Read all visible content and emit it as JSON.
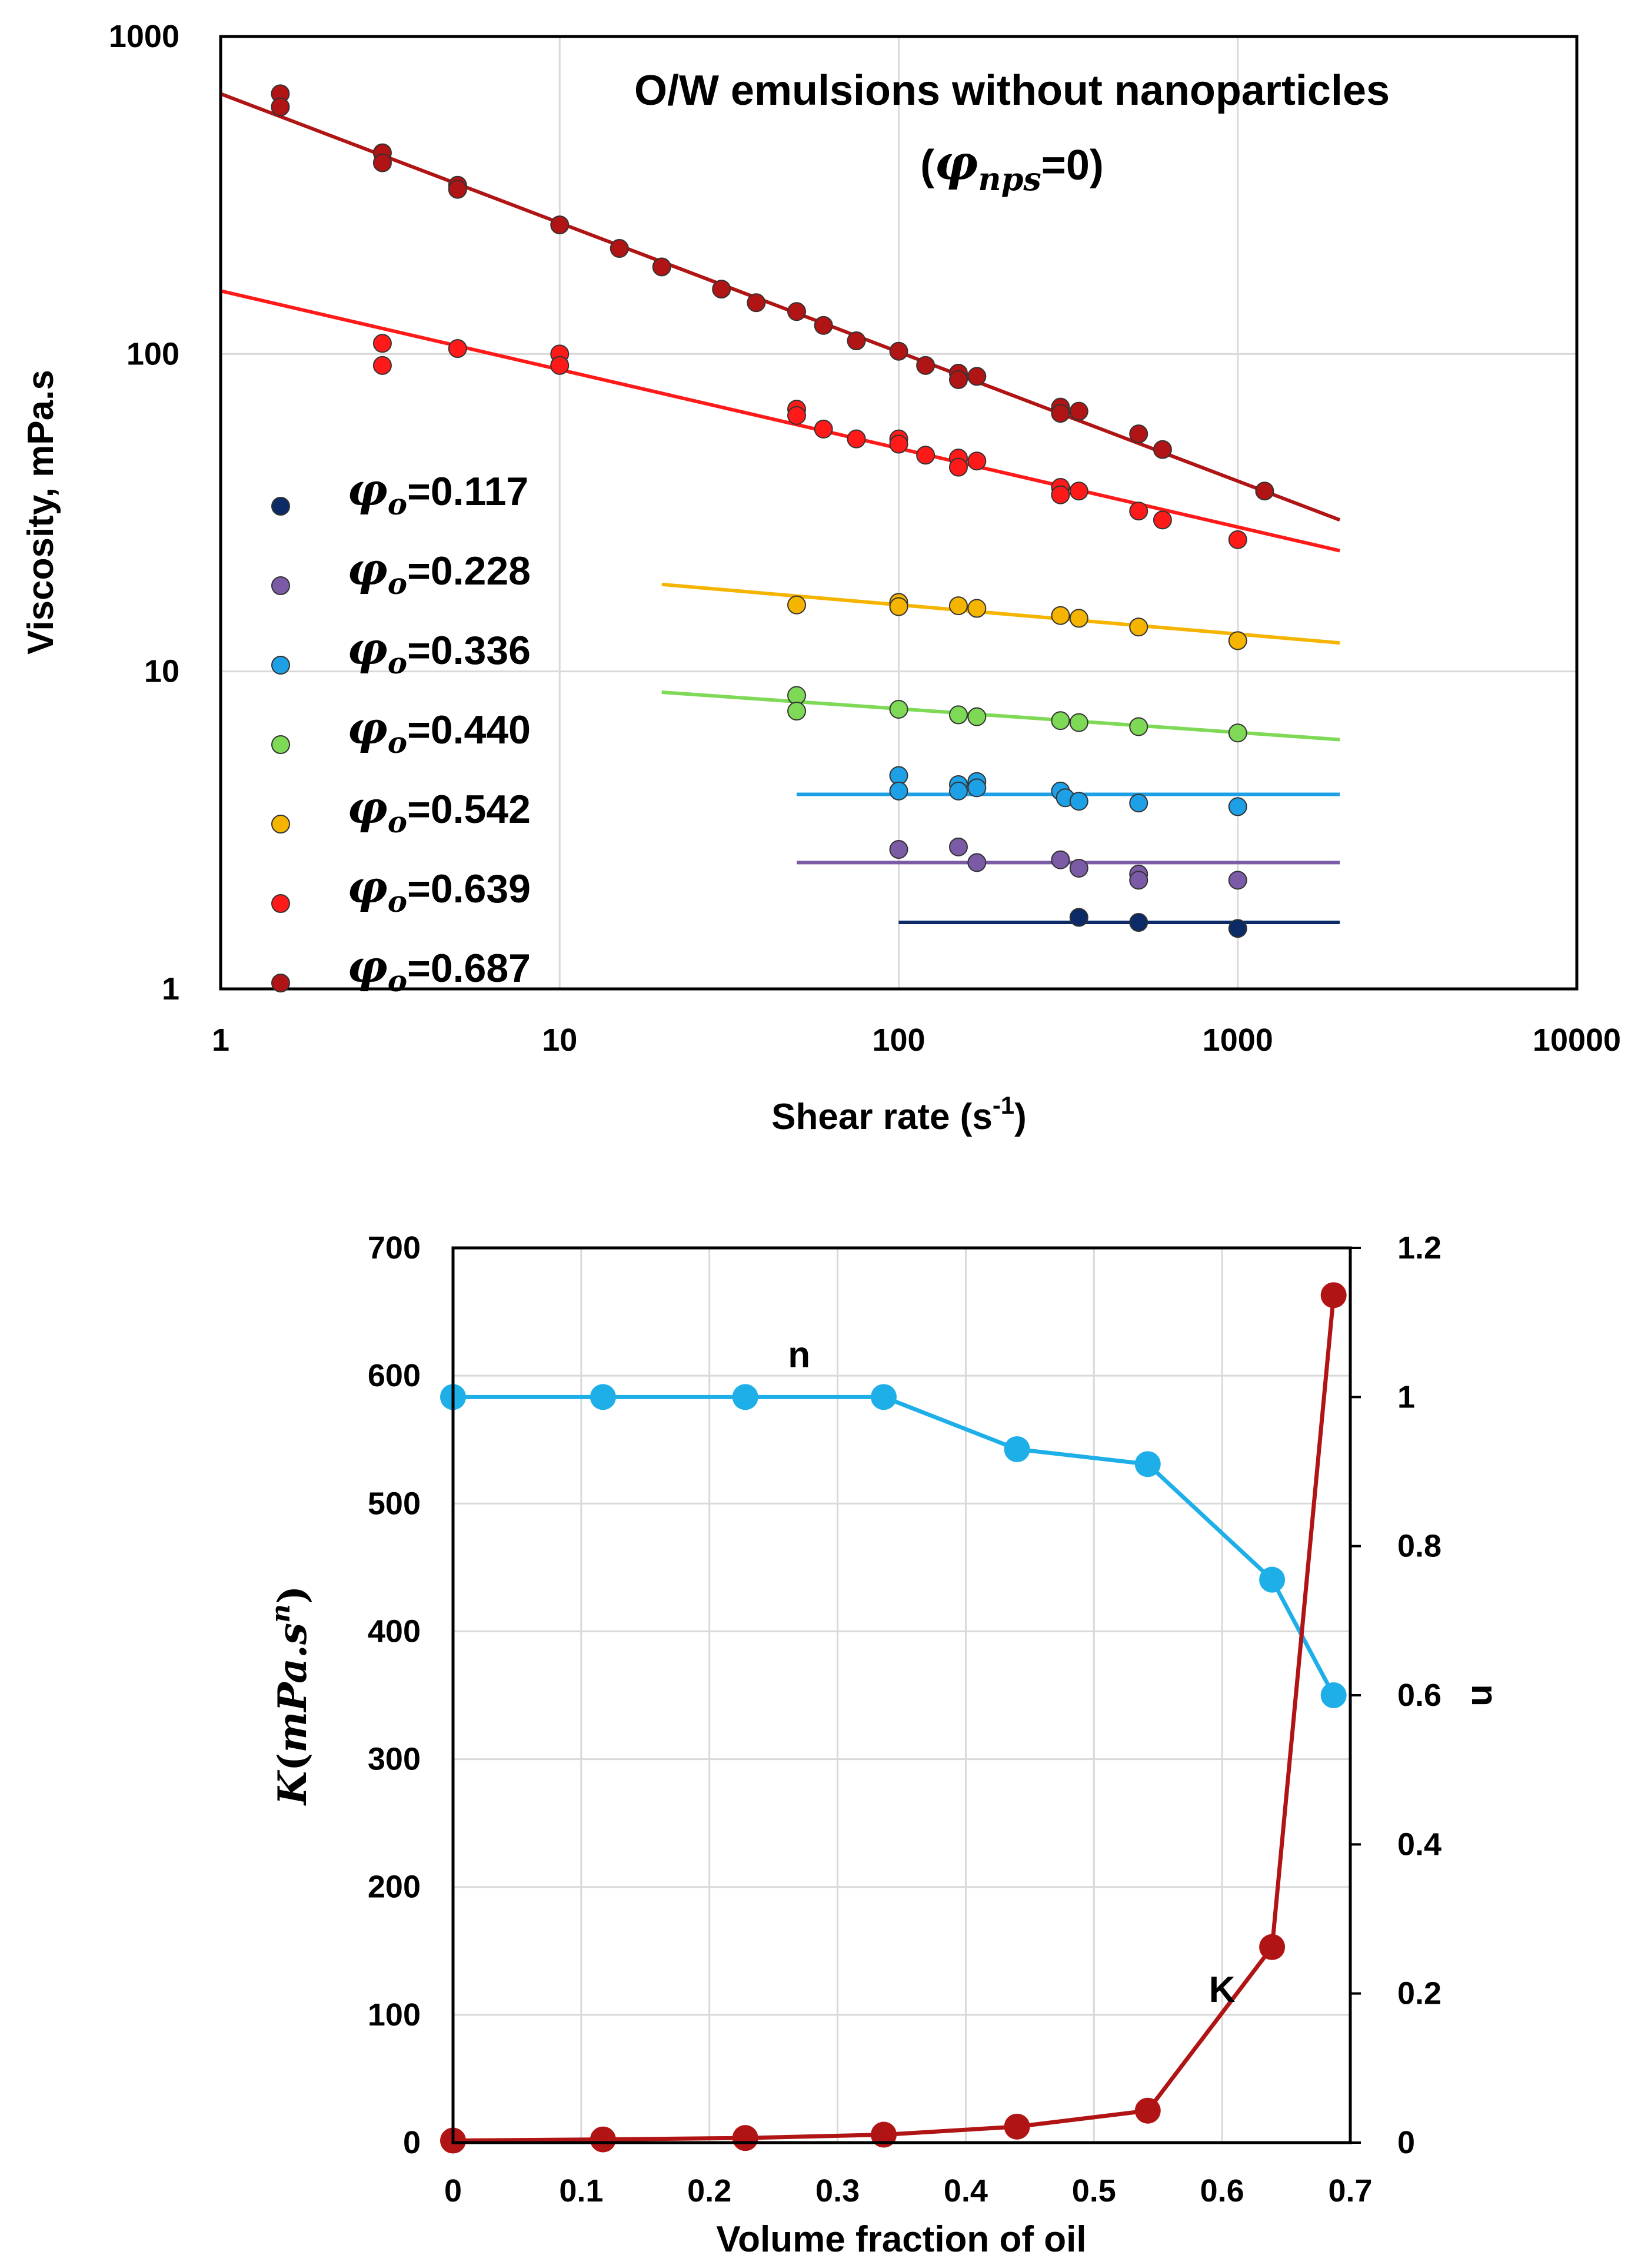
{
  "chart_data": [
    {
      "type": "scatter",
      "scale": "log-log",
      "title_line1": "O/W emulsions without nanoparticles",
      "title_line2_phi": "φ",
      "title_line2_sub": "nps",
      "title_line2_rest": "=0)",
      "title_line2_open": "(",
      "xlabel": "Shear rate (s",
      "xlabel_sup": "-1",
      "xlabel_close": ")",
      "ylabel": "Viscosity, mPa.s",
      "xlim": [
        1,
        10000
      ],
      "ylim": [
        1,
        1000
      ],
      "x_ticks": [
        "1",
        "10",
        "100",
        "1000",
        "10000"
      ],
      "y_ticks": [
        "1",
        "10",
        "100",
        "1000"
      ],
      "grid": true,
      "legend_placement": "left",
      "series": [
        {
          "name_phi": "φ",
          "name_sub": "o",
          "name_value": "=0.117",
          "color": "#0b2a66",
          "fit": {
            "x0": 100,
            "x1": 2000,
            "y0": 1.62,
            "y1": 1.62
          },
          "points": [
            [
              340,
              1.68
            ],
            [
              510,
              1.62
            ],
            [
              1000,
              1.55
            ]
          ]
        },
        {
          "name_phi": "φ",
          "name_sub": "o",
          "name_value": "=0.228",
          "color": "#7b5aa6",
          "fit": {
            "x0": 50,
            "x1": 2000,
            "y0": 2.5,
            "y1": 2.5
          },
          "points": [
            [
              100,
              2.75
            ],
            [
              150,
              2.8
            ],
            [
              170,
              2.5
            ],
            [
              300,
              2.55
            ],
            [
              340,
              2.4
            ],
            [
              510,
              2.3
            ],
            [
              510,
              2.2
            ],
            [
              1000,
              2.2
            ]
          ]
        },
        {
          "name_phi": "φ",
          "name_sub": "o",
          "name_value": "=0.336",
          "color": "#1ea0e6",
          "fit": {
            "x0": 50,
            "x1": 2000,
            "y0": 4.1,
            "y1": 4.1
          },
          "points": [
            [
              100,
              4.7
            ],
            [
              100,
              4.2
            ],
            [
              150,
              4.4
            ],
            [
              150,
              4.2
            ],
            [
              170,
              4.5
            ],
            [
              170,
              4.3
            ],
            [
              300,
              4.2
            ],
            [
              310,
              4.0
            ],
            [
              340,
              3.9
            ],
            [
              510,
              3.85
            ],
            [
              1000,
              3.75
            ]
          ]
        },
        {
          "name_phi": "φ",
          "name_sub": "o",
          "name_value": "=0.440",
          "color": "#7ed957",
          "fit": {
            "x0": 20,
            "x1": 2000,
            "y0": 8.6,
            "y1": 6.1
          },
          "points": [
            [
              50,
              8.4
            ],
            [
              50,
              7.5
            ],
            [
              100,
              7.6
            ],
            [
              150,
              7.3
            ],
            [
              170,
              7.2
            ],
            [
              300,
              7.0
            ],
            [
              340,
              6.9
            ],
            [
              510,
              6.7
            ],
            [
              1000,
              6.4
            ]
          ]
        },
        {
          "name_phi": "φ",
          "name_sub": "o",
          "name_value": "=0.542",
          "color": "#f5b400",
          "fit": {
            "x0": 20,
            "x1": 2000,
            "y0": 18.8,
            "y1": 12.3
          },
          "points": [
            [
              50,
              16.2
            ],
            [
              100,
              16.5
            ],
            [
              100,
              16.0
            ],
            [
              150,
              16.1
            ],
            [
              170,
              15.8
            ],
            [
              300,
              15.0
            ],
            [
              340,
              14.7
            ],
            [
              510,
              13.8
            ],
            [
              1000,
              12.5
            ]
          ]
        },
        {
          "name_phi": "φ",
          "name_sub": "o",
          "name_value": "=0.639",
          "color": "#ff1a1a",
          "fit": {
            "x0": 1,
            "x1": 2000,
            "y0": 158,
            "y1": 24
          },
          "points": [
            [
              3,
              108
            ],
            [
              3,
              92
            ],
            [
              5,
              104
            ],
            [
              10,
              100
            ],
            [
              10,
              92
            ],
            [
              50,
              67
            ],
            [
              50,
              64
            ],
            [
              60,
              58
            ],
            [
              75,
              54
            ],
            [
              100,
              54
            ],
            [
              100,
              52
            ],
            [
              120,
              48
            ],
            [
              150,
              47
            ],
            [
              150,
              44
            ],
            [
              170,
              46
            ],
            [
              300,
              38
            ],
            [
              300,
              36
            ],
            [
              340,
              37
            ],
            [
              510,
              32
            ],
            [
              600,
              30
            ],
            [
              1000,
              26
            ]
          ]
        },
        {
          "name_phi": "φ",
          "name_sub": "o",
          "name_value": "=0.687",
          "color": "#b01414",
          "fit": {
            "x0": 1,
            "x1": 2000,
            "y0": 660,
            "y1": 30
          },
          "points": [
            [
              1.5,
              660
            ],
            [
              1.5,
              600
            ],
            [
              3,
              430
            ],
            [
              3,
              400
            ],
            [
              5,
              340
            ],
            [
              5,
              330
            ],
            [
              10,
              255
            ],
            [
              15,
              215
            ],
            [
              20,
              188
            ],
            [
              30,
              160
            ],
            [
              38,
              145
            ],
            [
              50,
              136
            ],
            [
              60,
              123
            ],
            [
              75,
              110
            ],
            [
              100,
              102
            ],
            [
              120,
              92
            ],
            [
              150,
              87
            ],
            [
              150,
              83
            ],
            [
              170,
              85
            ],
            [
              300,
              68
            ],
            [
              300,
              65
            ],
            [
              340,
              66
            ],
            [
              510,
              56
            ],
            [
              600,
              50
            ],
            [
              1200,
              37
            ]
          ]
        }
      ]
    },
    {
      "type": "line",
      "title": "",
      "xlabel": "Volume fraction of oil",
      "ylabel_left": "K",
      "ylabel_left_units_open": "(",
      "ylabel_left_units": "mPa.s",
      "ylabel_left_units_sup": "n",
      "ylabel_left_units_close": ")",
      "ylabel_right": "n",
      "xlim": [
        0,
        0.7
      ],
      "ylim_left": [
        0,
        700
      ],
      "ylim_right": [
        0,
        1.2
      ],
      "x_ticks": [
        "0",
        "0.1",
        "0.2",
        "0.3",
        "0.4",
        "0.5",
        "0.6",
        "0.7"
      ],
      "y_ticks_left": [
        "0",
        "100",
        "200",
        "300",
        "400",
        "500",
        "600",
        "700"
      ],
      "y_ticks_right": [
        "0",
        "0.2",
        "0.4",
        "0.6",
        "0.8",
        "1",
        "1.2"
      ],
      "grid": true,
      "x": [
        0,
        0.117,
        0.228,
        0.336,
        0.44,
        0.542,
        0.639,
        0.687
      ],
      "series": [
        {
          "name": "n",
          "axis": "right",
          "color": "#1eaee8",
          "label": "n",
          "values": [
            1.0,
            1.0,
            1.0,
            1.0,
            0.93,
            0.91,
            0.755,
            0.6
          ]
        },
        {
          "name": "K",
          "axis": "left",
          "color": "#b01414",
          "label": "K",
          "values": [
            1.6,
            2.5,
            3.6,
            6.2,
            12.5,
            25,
            153,
            663
          ]
        }
      ]
    }
  ]
}
